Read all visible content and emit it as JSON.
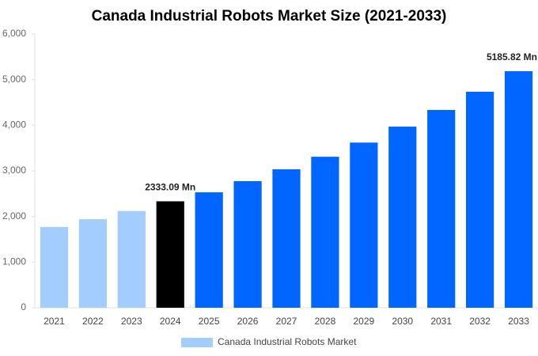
{
  "chart_data": {
    "type": "bar",
    "title": "Canada Industrial Robots Market Size (2021-2033)",
    "categories": [
      "2021",
      "2022",
      "2023",
      "2024",
      "2025",
      "2026",
      "2027",
      "2028",
      "2029",
      "2030",
      "2031",
      "2032",
      "2033"
    ],
    "series": [
      {
        "name": "Canada Industrial Robots Market",
        "color": "#a3cdfd",
        "values": [
          1770,
          1940,
          2120,
          2333.09,
          2530,
          2775,
          3035,
          3310,
          3620,
          3970,
          4335,
          4735,
          5185.82
        ],
        "value_labels": [
          null,
          null,
          null,
          "2333.09 Mn",
          null,
          null,
          null,
          null,
          null,
          null,
          null,
          null,
          "5185.82 Mn"
        ],
        "colors": [
          "#a3cdfd",
          "#a3cdfd",
          "#a3cdfd",
          "#000000",
          "#0066ff",
          "#0066ff",
          "#0066ff",
          "#0066ff",
          "#0066ff",
          "#0066ff",
          "#0066ff",
          "#0066ff",
          "#0066ff"
        ]
      }
    ],
    "ylim": [
      0,
      6000
    ],
    "yticks": [
      0,
      {
        "value": 1000,
        "label": "1,000"
      },
      {
        "value": 2000,
        "label": "2,000"
      },
      {
        "value": 3000,
        "label": "3,000"
      },
      {
        "value": 4000,
        "label": "4,000"
      },
      {
        "value": 5000,
        "label": "5,000"
      },
      {
        "value": 6000,
        "label": "6,000"
      }
    ],
    "grid": false
  }
}
